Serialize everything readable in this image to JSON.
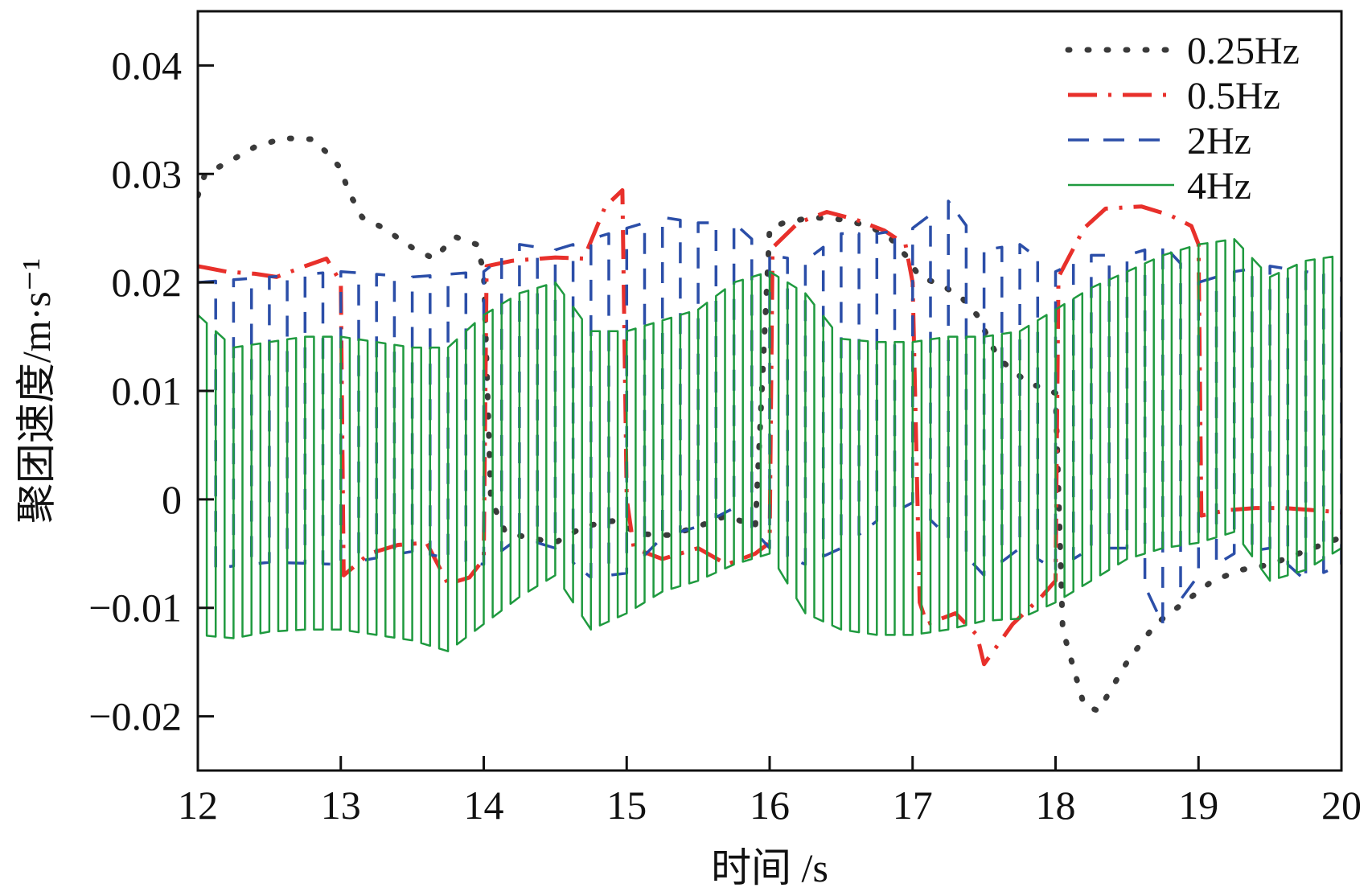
{
  "chart_data": {
    "type": "line",
    "title": "",
    "xlabel": "时间 /s",
    "ylabel": "聚团速度/m·s⁻¹",
    "xlim": [
      12,
      20
    ],
    "ylim": [
      -0.025,
      0.045
    ],
    "x_ticks": [
      12,
      13,
      14,
      15,
      16,
      17,
      18,
      19,
      20
    ],
    "x_tick_labels": [
      "12",
      "13",
      "14",
      "15",
      "16",
      "17",
      "18",
      "19",
      "20"
    ],
    "y_ticks": [
      -0.02,
      -0.01,
      0,
      0.01,
      0.02,
      0.03,
      0.04
    ],
    "y_tick_labels": [
      "−0.02",
      "−0.01",
      "0",
      "0.01",
      "0.02",
      "0.03",
      "0.04"
    ],
    "grid": false,
    "legend_position": "top-right",
    "series": [
      {
        "name": "0.25Hz",
        "color": "#3a3a3a",
        "style": "dotted",
        "points": [
          [
            12.0,
            0.028
          ],
          [
            12.05,
            0.03
          ],
          [
            12.2,
            0.031
          ],
          [
            12.4,
            0.0325
          ],
          [
            12.6,
            0.0333
          ],
          [
            12.8,
            0.0332
          ],
          [
            12.9,
            0.032
          ],
          [
            13.0,
            0.0305
          ],
          [
            13.05,
            0.0285
          ],
          [
            13.15,
            0.026
          ],
          [
            13.3,
            0.025
          ],
          [
            13.5,
            0.0232
          ],
          [
            13.65,
            0.0222
          ],
          [
            13.8,
            0.0242
          ],
          [
            13.95,
            0.0235
          ],
          [
            14.0,
            0.021
          ],
          [
            14.05,
            0.0
          ],
          [
            14.15,
            -0.003
          ],
          [
            14.3,
            -0.0035
          ],
          [
            14.5,
            -0.004
          ],
          [
            14.7,
            -0.0025
          ],
          [
            14.9,
            -0.002
          ],
          [
            15.1,
            -0.0032
          ],
          [
            15.3,
            -0.0033
          ],
          [
            15.5,
            -0.0025
          ],
          [
            15.7,
            -0.0015
          ],
          [
            15.9,
            -0.0025
          ],
          [
            16.0,
            0.025
          ],
          [
            16.1,
            0.0255
          ],
          [
            16.3,
            0.026
          ],
          [
            16.5,
            0.0258
          ],
          [
            16.7,
            0.0252
          ],
          [
            16.85,
            0.024
          ],
          [
            16.95,
            0.0225
          ],
          [
            17.05,
            0.0205
          ],
          [
            17.2,
            0.0198
          ],
          [
            17.35,
            0.0185
          ],
          [
            17.45,
            0.017
          ],
          [
            17.6,
            0.013
          ],
          [
            17.8,
            0.0108
          ],
          [
            18.0,
            0.0098
          ],
          [
            18.05,
            -0.012
          ],
          [
            18.2,
            -0.019
          ],
          [
            18.3,
            -0.0195
          ],
          [
            18.5,
            -0.015
          ],
          [
            18.7,
            -0.0115
          ],
          [
            18.9,
            -0.0095
          ],
          [
            19.1,
            -0.0075
          ],
          [
            19.3,
            -0.0065
          ],
          [
            19.5,
            -0.006
          ],
          [
            19.7,
            -0.005
          ],
          [
            19.9,
            -0.004
          ],
          [
            20.0,
            -0.0035
          ]
        ]
      },
      {
        "name": "0.5Hz",
        "color": "#e8302b",
        "style": "dash-dot",
        "points": [
          [
            12.0,
            0.0215
          ],
          [
            12.2,
            0.021
          ],
          [
            12.4,
            0.0208
          ],
          [
            12.55,
            0.0205
          ],
          [
            12.75,
            0.0215
          ],
          [
            12.9,
            0.0222
          ],
          [
            13.0,
            0.02
          ],
          [
            13.02,
            -0.007
          ],
          [
            13.2,
            -0.005
          ],
          [
            13.4,
            -0.0042
          ],
          [
            13.6,
            -0.004
          ],
          [
            13.75,
            -0.0078
          ],
          [
            13.9,
            -0.0072
          ],
          [
            14.0,
            -0.0055
          ],
          [
            14.02,
            0.0215
          ],
          [
            14.2,
            0.022
          ],
          [
            14.5,
            0.0223
          ],
          [
            14.7,
            0.0222
          ],
          [
            14.85,
            0.027
          ],
          [
            14.97,
            0.0285
          ],
          [
            15.0,
            0.0
          ],
          [
            15.05,
            -0.0045
          ],
          [
            15.25,
            -0.0055
          ],
          [
            15.5,
            -0.0045
          ],
          [
            15.7,
            -0.006
          ],
          [
            15.9,
            -0.005
          ],
          [
            16.0,
            -0.004
          ],
          [
            16.02,
            0.0232
          ],
          [
            16.2,
            0.0255
          ],
          [
            16.4,
            0.0265
          ],
          [
            16.6,
            0.0258
          ],
          [
            16.8,
            0.0248
          ],
          [
            16.95,
            0.0235
          ],
          [
            17.0,
            0.02
          ],
          [
            17.05,
            -0.0095
          ],
          [
            17.1,
            -0.0115
          ],
          [
            17.3,
            -0.0105
          ],
          [
            17.45,
            -0.0125
          ],
          [
            17.5,
            -0.0152
          ],
          [
            17.7,
            -0.0115
          ],
          [
            17.9,
            -0.009
          ],
          [
            18.0,
            -0.0075
          ],
          [
            18.02,
            0.0205
          ],
          [
            18.2,
            0.025
          ],
          [
            18.35,
            0.0268
          ],
          [
            18.6,
            0.027
          ],
          [
            18.8,
            0.0262
          ],
          [
            18.95,
            0.0252
          ],
          [
            19.0,
            0.0235
          ],
          [
            19.02,
            -0.0015
          ],
          [
            19.2,
            -0.001
          ],
          [
            19.4,
            -0.0008
          ],
          [
            19.6,
            -0.0008
          ],
          [
            19.8,
            -0.001
          ],
          [
            20.0,
            -0.0012
          ]
        ]
      },
      {
        "name": "2Hz",
        "color": "#2b4ea8",
        "style": "dashed",
        "period": 0.25,
        "upper": [
          [
            12.0,
            0.02
          ],
          [
            12.5,
            0.0205
          ],
          [
            13.0,
            0.021
          ],
          [
            13.5,
            0.0205
          ],
          [
            14.0,
            0.021
          ],
          [
            14.25,
            0.0235
          ],
          [
            14.5,
            0.023
          ],
          [
            14.75,
            0.024
          ],
          [
            15.0,
            0.025
          ],
          [
            15.25,
            0.026
          ],
          [
            15.5,
            0.0255
          ],
          [
            15.75,
            0.0255
          ],
          [
            16.0,
            0.0225
          ],
          [
            16.25,
            0.022
          ],
          [
            16.5,
            0.0245
          ],
          [
            16.75,
            0.0245
          ],
          [
            17.0,
            0.025
          ],
          [
            17.25,
            0.0275
          ],
          [
            17.5,
            0.023
          ],
          [
            17.75,
            0.0235
          ],
          [
            18.0,
            0.021
          ],
          [
            18.25,
            0.0225
          ],
          [
            18.5,
            0.0225
          ],
          [
            18.75,
            0.0235
          ],
          [
            19.0,
            0.02
          ],
          [
            19.25,
            0.021
          ],
          [
            19.5,
            0.0215
          ],
          [
            19.75,
            0.021
          ],
          [
            20.0,
            0.0205
          ]
        ],
        "lower": [
          [
            12.0,
            -0.0065
          ],
          [
            12.5,
            -0.0058
          ],
          [
            13.0,
            -0.006
          ],
          [
            13.5,
            -0.0048
          ],
          [
            14.0,
            -0.006
          ],
          [
            14.25,
            -0.0035
          ],
          [
            14.5,
            -0.0045
          ],
          [
            14.75,
            -0.0072
          ],
          [
            15.0,
            -0.0068
          ],
          [
            15.25,
            -0.0035
          ],
          [
            15.5,
            -0.0025
          ],
          [
            15.75,
            -0.0008
          ],
          [
            16.0,
            -0.0045
          ],
          [
            16.25,
            -0.006
          ],
          [
            16.5,
            -0.0045
          ],
          [
            16.75,
            -0.002
          ],
          [
            17.0,
            -0.0003
          ],
          [
            17.25,
            -0.0035
          ],
          [
            17.5,
            -0.007
          ],
          [
            17.75,
            -0.0045
          ],
          [
            18.0,
            -0.0065
          ],
          [
            18.25,
            -0.0045
          ],
          [
            18.5,
            -0.0045
          ],
          [
            18.75,
            -0.0115
          ],
          [
            19.0,
            -0.007
          ],
          [
            19.25,
            -0.005
          ],
          [
            19.5,
            -0.0045
          ],
          [
            19.75,
            -0.0075
          ],
          [
            20.0,
            -0.006
          ]
        ]
      },
      {
        "name": "4Hz",
        "color": "#1f9a3f",
        "style": "solid",
        "period": 0.125,
        "upper": [
          [
            12.0,
            0.017
          ],
          [
            12.25,
            0.014
          ],
          [
            12.5,
            0.0145
          ],
          [
            12.75,
            0.015
          ],
          [
            13.0,
            0.015
          ],
          [
            13.25,
            0.0145
          ],
          [
            13.5,
            0.014
          ],
          [
            13.75,
            0.014
          ],
          [
            14.0,
            0.017
          ],
          [
            14.25,
            0.019
          ],
          [
            14.5,
            0.02
          ],
          [
            14.75,
            0.0155
          ],
          [
            15.0,
            0.0155
          ],
          [
            15.25,
            0.0165
          ],
          [
            15.5,
            0.0175
          ],
          [
            15.75,
            0.02
          ],
          [
            16.0,
            0.021
          ],
          [
            16.25,
            0.019
          ],
          [
            16.5,
            0.0148
          ],
          [
            16.75,
            0.0145
          ],
          [
            17.0,
            0.0145
          ],
          [
            17.25,
            0.015
          ],
          [
            17.5,
            0.015
          ],
          [
            17.75,
            0.0155
          ],
          [
            18.0,
            0.0175
          ],
          [
            18.25,
            0.0195
          ],
          [
            18.5,
            0.021
          ],
          [
            18.75,
            0.0225
          ],
          [
            19.0,
            0.0235
          ],
          [
            19.25,
            0.024
          ],
          [
            19.5,
            0.0205
          ],
          [
            19.75,
            0.022
          ],
          [
            20.0,
            0.0225
          ]
        ],
        "lower": [
          [
            12.0,
            -0.0125
          ],
          [
            12.25,
            -0.0128
          ],
          [
            12.5,
            -0.0122
          ],
          [
            12.75,
            -0.012
          ],
          [
            13.0,
            -0.012
          ],
          [
            13.25,
            -0.0125
          ],
          [
            13.5,
            -0.013
          ],
          [
            13.75,
            -0.014
          ],
          [
            14.0,
            -0.0115
          ],
          [
            14.25,
            -0.009
          ],
          [
            14.5,
            -0.007
          ],
          [
            14.75,
            -0.012
          ],
          [
            15.0,
            -0.0105
          ],
          [
            15.25,
            -0.0085
          ],
          [
            15.5,
            -0.0075
          ],
          [
            15.75,
            -0.006
          ],
          [
            16.0,
            -0.005
          ],
          [
            16.25,
            -0.0105
          ],
          [
            16.5,
            -0.012
          ],
          [
            16.75,
            -0.0125
          ],
          [
            17.0,
            -0.0125
          ],
          [
            17.25,
            -0.012
          ],
          [
            17.5,
            -0.0112
          ],
          [
            17.75,
            -0.011
          ],
          [
            18.0,
            -0.0095
          ],
          [
            18.25,
            -0.0075
          ],
          [
            18.5,
            -0.0055
          ],
          [
            18.75,
            -0.0045
          ],
          [
            19.0,
            -0.004
          ],
          [
            19.25,
            -0.003
          ],
          [
            19.5,
            -0.0075
          ],
          [
            19.75,
            -0.0065
          ],
          [
            20.0,
            -0.0045
          ]
        ]
      }
    ]
  }
}
